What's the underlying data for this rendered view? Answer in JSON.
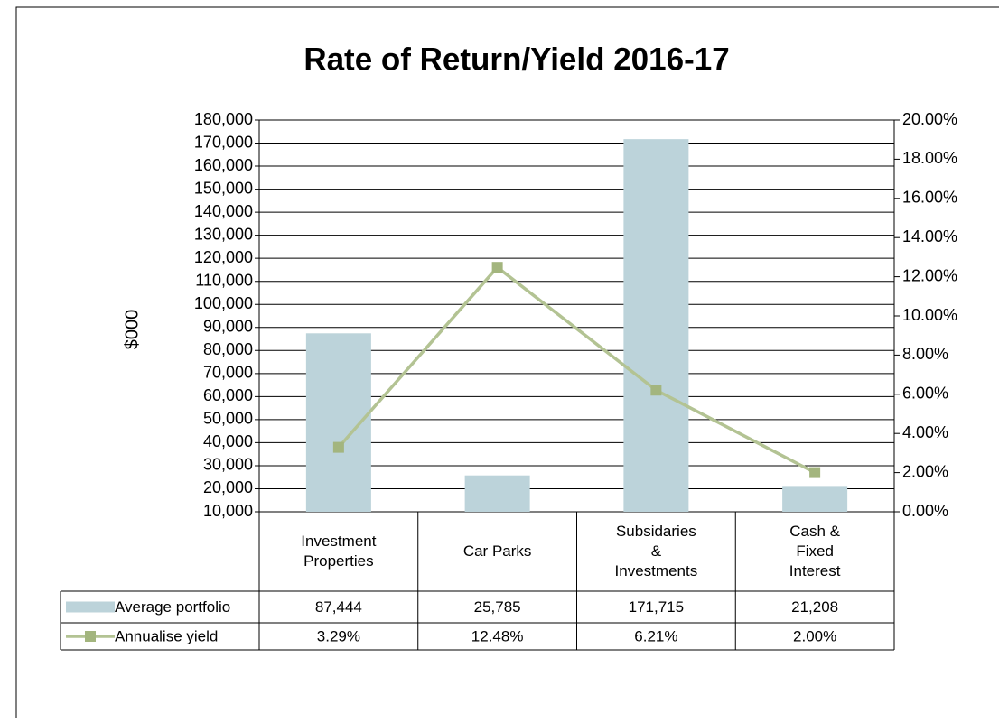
{
  "chart_data": {
    "type": "bar_line",
    "title": "Rate of Return/Yield 2016-17",
    "y_axis_label": "$000",
    "categories": [
      "Investment Properties",
      "Car Parks",
      "Subsidaries & Investments",
      "Cash & Fixed Interest"
    ],
    "series": [
      {
        "name": "Average portfolio",
        "type": "bar",
        "color": "#bcd3da",
        "values": [
          87444,
          25785,
          171715,
          21208
        ],
        "value_labels": [
          "87,444",
          "25,785",
          "171,715",
          "21,208"
        ]
      },
      {
        "name": "Annualise yield",
        "type": "line",
        "axis": "y2",
        "color": "#b3c393",
        "marker_color": "#a3b57e",
        "values": [
          3.29,
          12.48,
          6.21,
          2.0
        ],
        "value_labels": [
          "3.29%",
          "12.48%",
          "6.21%",
          "2.00%"
        ]
      }
    ],
    "ylim": [
      10000,
      180000
    ],
    "yticks": [
      {
        "value": 10000,
        "label": "10,000"
      },
      {
        "value": 20000,
        "label": "20,000"
      },
      {
        "value": 30000,
        "label": "30,000"
      },
      {
        "value": 40000,
        "label": "40,000"
      },
      {
        "value": 50000,
        "label": "50,000"
      },
      {
        "value": 60000,
        "label": "60,000"
      },
      {
        "value": 70000,
        "label": "70,000"
      },
      {
        "value": 80000,
        "label": "80,000"
      },
      {
        "value": 90000,
        "label": "90,000"
      },
      {
        "value": 100000,
        "label": "100,000"
      },
      {
        "value": 110000,
        "label": "110,000"
      },
      {
        "value": 120000,
        "label": "120,000"
      },
      {
        "value": 130000,
        "label": "130,000"
      },
      {
        "value": 140000,
        "label": "140,000"
      },
      {
        "value": 150000,
        "label": "150,000"
      },
      {
        "value": 160000,
        "label": "160,000"
      },
      {
        "value": 170000,
        "label": "170,000"
      },
      {
        "value": 180000,
        "label": "180,000"
      }
    ],
    "y2lim": [
      0,
      20
    ],
    "y2ticks": [
      {
        "value": 0,
        "label": "0.00%"
      },
      {
        "value": 2,
        "label": "2.00%"
      },
      {
        "value": 4,
        "label": "4.00%"
      },
      {
        "value": 6,
        "label": "6.00%"
      },
      {
        "value": 8,
        "label": "8.00%"
      },
      {
        "value": 10,
        "label": "10.00%"
      },
      {
        "value": 12,
        "label": "12.00%"
      },
      {
        "value": 14,
        "label": "14.00%"
      },
      {
        "value": 16,
        "label": "16.00%"
      },
      {
        "value": 18,
        "label": "18.00%"
      },
      {
        "value": 20,
        "label": "20.00%"
      }
    ],
    "grid": true,
    "data_table": true
  }
}
